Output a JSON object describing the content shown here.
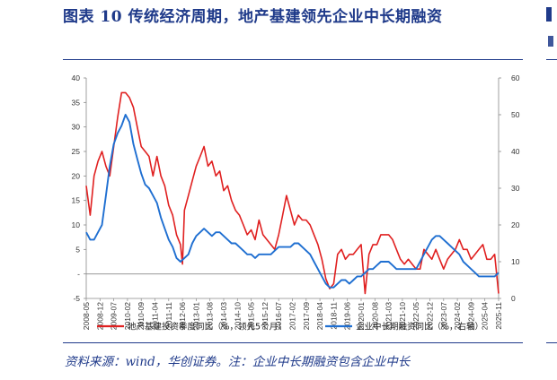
{
  "figure": {
    "title": "图表 10   传统经济周期，地产基建领先企业中长期融资",
    "source_note": "资料来源：wind，华创证券。注：企业中长期融资包含企业中长"
  },
  "chart_data": {
    "type": "line",
    "title": "",
    "xlabel": "",
    "ylabel": "",
    "left_axis": {
      "ylim": [
        -5,
        40
      ],
      "ticks": [
        "40",
        "35",
        "30",
        "25",
        "20",
        "15",
        "10",
        "5",
        "-",
        "-5"
      ]
    },
    "right_axis": {
      "ylim": [
        0,
        60
      ],
      "ticks": [
        "60",
        "50",
        "40",
        "30",
        "20",
        "10",
        "0"
      ]
    },
    "x_tick_labels": [
      "2008-05",
      "2008-12",
      "2009-07",
      "2010-02",
      "2010-09",
      "2011-04",
      "2011-11",
      "2012-06",
      "2013-01",
      "2013-08",
      "2014-03",
      "2014-10",
      "2015-05",
      "2015-12",
      "2016-07",
      "2017-02",
      "2017-09",
      "2018-04",
      "2018-11",
      "2019-06",
      "2020-01",
      "2020-08",
      "2021-03",
      "2021-10",
      "2022-05",
      "2022-12",
      "2023-07",
      "2024-02",
      "2024-09",
      "2025-04",
      "2025-11"
    ],
    "grid": false,
    "legend_position": "bottom",
    "series": [
      {
        "name": "地产基建投资季度同比（%，领先5个月）",
        "axis": "left",
        "color": "#e02020",
        "points": [
          [
            "2008-05",
            18
          ],
          [
            "2008-07",
            12
          ],
          [
            "2008-09",
            20
          ],
          [
            "2008-11",
            23
          ],
          [
            "2009-01",
            25
          ],
          [
            "2009-03",
            22
          ],
          [
            "2009-05",
            20
          ],
          [
            "2009-07",
            26
          ],
          [
            "2009-09",
            32
          ],
          [
            "2009-11",
            37
          ],
          [
            "2010-01",
            37
          ],
          [
            "2010-03",
            36
          ],
          [
            "2010-05",
            34
          ],
          [
            "2010-07",
            30
          ],
          [
            "2010-09",
            26
          ],
          [
            "2010-11",
            25
          ],
          [
            "2011-01",
            24
          ],
          [
            "2011-03",
            20
          ],
          [
            "2011-05",
            24
          ],
          [
            "2011-07",
            20
          ],
          [
            "2011-09",
            18
          ],
          [
            "2011-11",
            14
          ],
          [
            "2012-01",
            12
          ],
          [
            "2012-03",
            8
          ],
          [
            "2012-05",
            6
          ],
          [
            "2012-06",
            2
          ],
          [
            "2012-07",
            13
          ],
          [
            "2012-09",
            16
          ],
          [
            "2012-11",
            19
          ],
          [
            "2013-01",
            22
          ],
          [
            "2013-03",
            24
          ],
          [
            "2013-05",
            26
          ],
          [
            "2013-07",
            22
          ],
          [
            "2013-09",
            23
          ],
          [
            "2013-11",
            20
          ],
          [
            "2014-01",
            21
          ],
          [
            "2014-03",
            17
          ],
          [
            "2014-05",
            18
          ],
          [
            "2014-07",
            15
          ],
          [
            "2014-09",
            13
          ],
          [
            "2014-11",
            12
          ],
          [
            "2015-01",
            10
          ],
          [
            "2015-03",
            8
          ],
          [
            "2015-05",
            9
          ],
          [
            "2015-07",
            7
          ],
          [
            "2015-09",
            11
          ],
          [
            "2015-11",
            8
          ],
          [
            "2016-01",
            7
          ],
          [
            "2016-03",
            6
          ],
          [
            "2016-05",
            5
          ],
          [
            "2016-07",
            8
          ],
          [
            "2016-09",
            12
          ],
          [
            "2016-11",
            16
          ],
          [
            "2017-01",
            13
          ],
          [
            "2017-03",
            10
          ],
          [
            "2017-05",
            12
          ],
          [
            "2017-07",
            11
          ],
          [
            "2017-09",
            11
          ],
          [
            "2017-11",
            10
          ],
          [
            "2018-01",
            8
          ],
          [
            "2018-03",
            6
          ],
          [
            "2018-05",
            3
          ],
          [
            "2018-07",
            -1
          ],
          [
            "2018-09",
            -3
          ],
          [
            "2018-11",
            -2
          ],
          [
            "2019-01",
            4
          ],
          [
            "2019-03",
            5
          ],
          [
            "2019-05",
            3
          ],
          [
            "2019-07",
            4
          ],
          [
            "2019-09",
            4
          ],
          [
            "2019-11",
            5
          ],
          [
            "2020-01",
            6
          ],
          [
            "2020-02",
            1
          ],
          [
            "2020-03",
            -4
          ],
          [
            "2020-05",
            4
          ],
          [
            "2020-07",
            6
          ],
          [
            "2020-09",
            6
          ],
          [
            "2020-11",
            8
          ],
          [
            "2021-01",
            8
          ],
          [
            "2021-03",
            8
          ],
          [
            "2021-05",
            7
          ],
          [
            "2021-07",
            5
          ],
          [
            "2021-09",
            3
          ],
          [
            "2021-11",
            2
          ],
          [
            "2022-01",
            3
          ],
          [
            "2022-03",
            2
          ],
          [
            "2022-05",
            1
          ],
          [
            "2022-07",
            1
          ],
          [
            "2022-09",
            5
          ],
          [
            "2022-11",
            4
          ],
          [
            "2023-01",
            3
          ],
          [
            "2023-03",
            5
          ],
          [
            "2023-05",
            3
          ],
          [
            "2023-07",
            1
          ],
          [
            "2023-09",
            3
          ],
          [
            "2023-11",
            4
          ],
          [
            "2024-01",
            5
          ],
          [
            "2024-03",
            7
          ],
          [
            "2024-05",
            5
          ],
          [
            "2024-07",
            5
          ],
          [
            "2024-09",
            3
          ],
          [
            "2024-11",
            4
          ],
          [
            "2025-01",
            5
          ],
          [
            "2025-03",
            6
          ],
          [
            "2025-05",
            3
          ],
          [
            "2025-07",
            3
          ],
          [
            "2025-09",
            4
          ],
          [
            "2025-11",
            -4
          ]
        ]
      },
      {
        "name": "企业中长期融资同比（%，右轴）",
        "axis": "right",
        "color": "#1f6fd1",
        "points": [
          [
            "2008-05",
            18
          ],
          [
            "2008-07",
            16
          ],
          [
            "2008-09",
            16
          ],
          [
            "2008-11",
            18
          ],
          [
            "2009-01",
            20
          ],
          [
            "2009-03",
            28
          ],
          [
            "2009-05",
            36
          ],
          [
            "2009-07",
            42
          ],
          [
            "2009-09",
            45
          ],
          [
            "2009-11",
            47
          ],
          [
            "2010-01",
            50
          ],
          [
            "2010-03",
            48
          ],
          [
            "2010-05",
            42
          ],
          [
            "2010-07",
            38
          ],
          [
            "2010-09",
            34
          ],
          [
            "2010-11",
            31
          ],
          [
            "2011-01",
            30
          ],
          [
            "2011-03",
            28
          ],
          [
            "2011-05",
            26
          ],
          [
            "2011-07",
            22
          ],
          [
            "2011-09",
            19
          ],
          [
            "2011-11",
            16
          ],
          [
            "2012-01",
            14
          ],
          [
            "2012-03",
            11
          ],
          [
            "2012-05",
            10
          ],
          [
            "2012-07",
            11
          ],
          [
            "2012-09",
            12
          ],
          [
            "2012-11",
            15
          ],
          [
            "2013-01",
            17
          ],
          [
            "2013-03",
            18
          ],
          [
            "2013-05",
            19
          ],
          [
            "2013-07",
            18
          ],
          [
            "2013-09",
            17
          ],
          [
            "2013-11",
            18
          ],
          [
            "2014-01",
            18
          ],
          [
            "2014-03",
            17
          ],
          [
            "2014-05",
            16
          ],
          [
            "2014-07",
            15
          ],
          [
            "2014-09",
            15
          ],
          [
            "2014-11",
            14
          ],
          [
            "2015-01",
            13
          ],
          [
            "2015-03",
            12
          ],
          [
            "2015-05",
            12
          ],
          [
            "2015-07",
            11
          ],
          [
            "2015-09",
            12
          ],
          [
            "2015-11",
            12
          ],
          [
            "2016-01",
            12
          ],
          [
            "2016-03",
            12
          ],
          [
            "2016-05",
            13
          ],
          [
            "2016-07",
            14
          ],
          [
            "2016-09",
            14
          ],
          [
            "2016-11",
            14
          ],
          [
            "2017-01",
            14
          ],
          [
            "2017-03",
            15
          ],
          [
            "2017-05",
            15
          ],
          [
            "2017-07",
            14
          ],
          [
            "2017-09",
            13
          ],
          [
            "2017-11",
            12
          ],
          [
            "2018-01",
            10
          ],
          [
            "2018-03",
            8
          ],
          [
            "2018-05",
            6
          ],
          [
            "2018-07",
            4
          ],
          [
            "2018-09",
            3
          ],
          [
            "2018-11",
            3
          ],
          [
            "2019-01",
            4
          ],
          [
            "2019-03",
            5
          ],
          [
            "2019-05",
            5
          ],
          [
            "2019-07",
            4
          ],
          [
            "2019-09",
            5
          ],
          [
            "2019-11",
            6
          ],
          [
            "2020-01",
            6
          ],
          [
            "2020-03",
            7
          ],
          [
            "2020-05",
            8
          ],
          [
            "2020-07",
            8
          ],
          [
            "2020-09",
            9
          ],
          [
            "2020-11",
            10
          ],
          [
            "2021-01",
            10
          ],
          [
            "2021-03",
            10
          ],
          [
            "2021-05",
            9
          ],
          [
            "2021-07",
            8
          ],
          [
            "2021-09",
            8
          ],
          [
            "2021-11",
            8
          ],
          [
            "2022-01",
            8
          ],
          [
            "2022-03",
            8
          ],
          [
            "2022-05",
            8
          ],
          [
            "2022-07",
            10
          ],
          [
            "2022-09",
            12
          ],
          [
            "2022-11",
            14
          ],
          [
            "2023-01",
            16
          ],
          [
            "2023-03",
            17
          ],
          [
            "2023-05",
            17
          ],
          [
            "2023-07",
            16
          ],
          [
            "2023-09",
            15
          ],
          [
            "2023-11",
            14
          ],
          [
            "2024-01",
            13
          ],
          [
            "2024-03",
            12
          ],
          [
            "2024-05",
            10
          ],
          [
            "2024-07",
            9
          ],
          [
            "2024-09",
            8
          ],
          [
            "2024-11",
            7
          ],
          [
            "2025-01",
            6
          ],
          [
            "2025-03",
            6
          ],
          [
            "2025-05",
            6
          ],
          [
            "2025-07",
            6
          ],
          [
            "2025-09",
            6
          ],
          [
            "2025-11",
            7
          ]
        ]
      }
    ]
  }
}
